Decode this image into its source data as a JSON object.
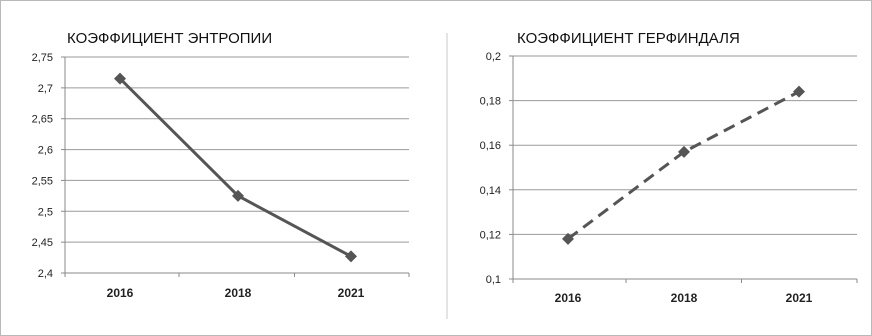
{
  "chart_data": [
    {
      "type": "line",
      "title": "КОЭФФИЦИЕНТ ЭНТРОПИИ",
      "categories": [
        "2016",
        "2018",
        "2021"
      ],
      "series": [
        {
          "values": [
            2.715,
            2.525,
            2.427
          ]
        }
      ],
      "yticks": [
        "2,75",
        "2,7",
        "2,65",
        "2,6",
        "2,55",
        "2,5",
        "2,45",
        "2,4"
      ],
      "ylim": [
        2.4,
        2.75
      ],
      "grid": true,
      "line_style": "solid",
      "marker": "diamond",
      "color": "#555555"
    },
    {
      "type": "line",
      "title": "КОЭФФИЦИЕНТ ГЕРФИНДАЛЯ",
      "categories": [
        "2016",
        "2018",
        "2021"
      ],
      "series": [
        {
          "values": [
            0.118,
            0.157,
            0.184
          ]
        }
      ],
      "yticks": [
        "0,2",
        "0,18",
        "0,16",
        "0,14",
        "0,12",
        "0,1"
      ],
      "ylim": [
        0.1,
        0.2
      ],
      "grid": true,
      "line_style": "dashed",
      "marker": "diamond",
      "color": "#555555"
    }
  ]
}
